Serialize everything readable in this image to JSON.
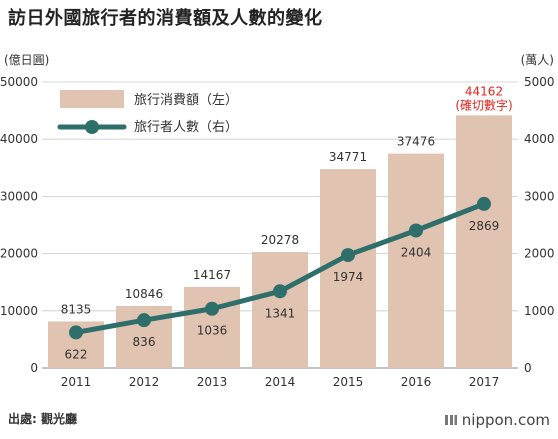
{
  "title": "訪日外國旅行者的消費額及人數的變化",
  "footer": {
    "source_label": "出處:",
    "source_name": "觀光廳",
    "brand": "nippon.com"
  },
  "colors": {
    "bar": "#e0c3b0",
    "line": "#2f6f6b",
    "highlight_text": "#e6231e",
    "axis_text": "#333333"
  },
  "chart_data": {
    "type": "bar",
    "categories": [
      "2011",
      "2012",
      "2013",
      "2014",
      "2015",
      "2016",
      "2017"
    ],
    "left_axis": {
      "unit_label": "(億日圓)",
      "ylim": [
        0,
        50000
      ],
      "ticks": [
        0,
        10000,
        20000,
        30000,
        40000,
        50000
      ]
    },
    "right_axis": {
      "unit_label": "(萬人)",
      "ylim": [
        0,
        5000
      ],
      "ticks": [
        0,
        1000,
        2000,
        3000,
        4000,
        5000
      ]
    },
    "series": [
      {
        "name": "旅行消費額（左）",
        "type": "bar",
        "axis": "left",
        "values": [
          8135,
          10846,
          14167,
          20278,
          34771,
          37476,
          44162
        ],
        "labels": [
          "8135",
          "10846",
          "14167",
          "20278",
          "34771",
          "37476",
          "44162"
        ]
      },
      {
        "name": "旅行者人數（右）",
        "type": "line",
        "axis": "right",
        "values": [
          622,
          836,
          1036,
          1341,
          1974,
          2404,
          2869
        ],
        "labels": [
          "622",
          "836",
          "1036",
          "1341",
          "1974",
          "2404",
          "2869"
        ]
      }
    ],
    "annotations": [
      {
        "category": "2017",
        "series": "旅行消費額（左）",
        "text": "(確切數字)"
      }
    ],
    "grid": true,
    "legend": "top-left"
  }
}
